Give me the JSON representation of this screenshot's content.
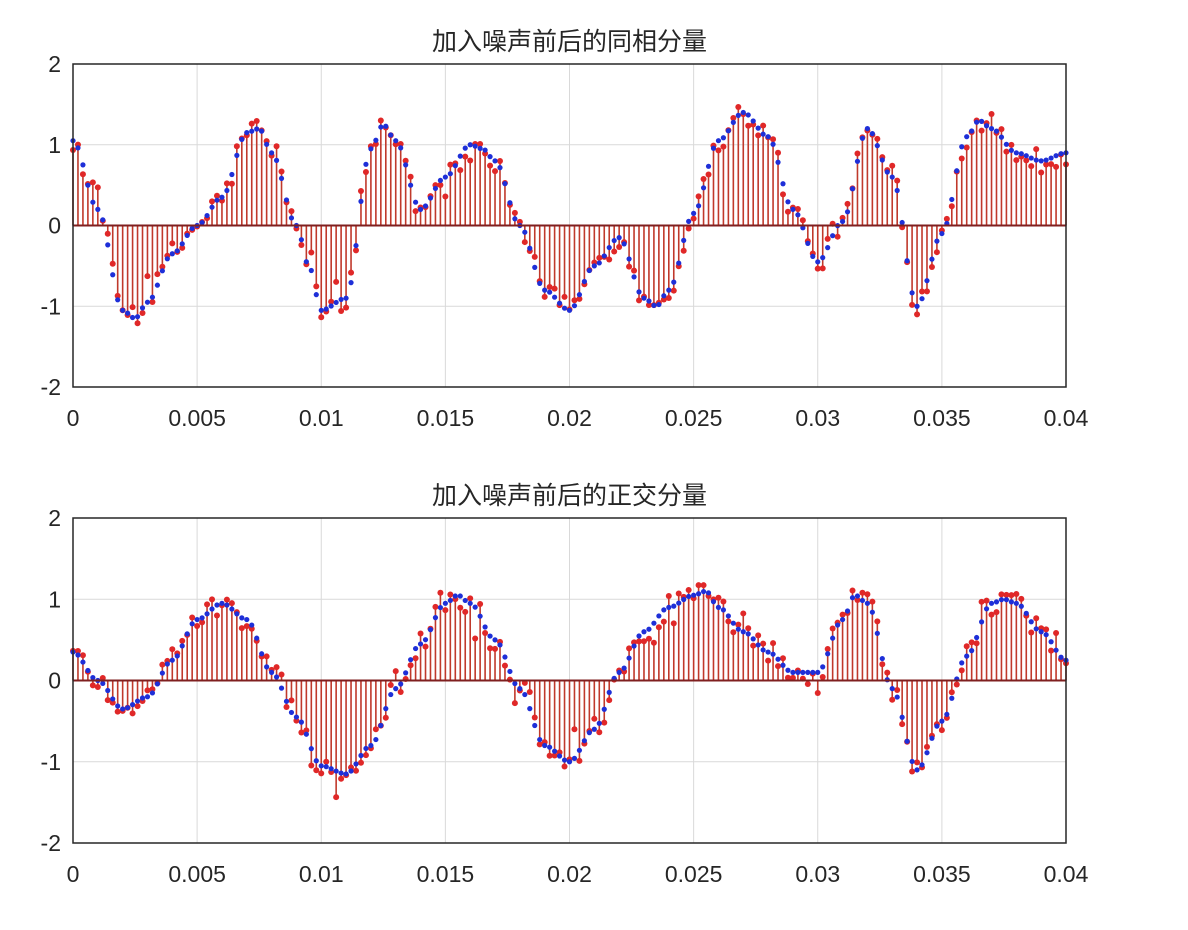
{
  "chart_data": [
    {
      "type": "stem",
      "title": "加入噪声前后的同相分量",
      "xlabel": "",
      "ylabel": "",
      "xlim": [
        0,
        0.04
      ],
      "ylim": [
        -2,
        2
      ],
      "x_ticks": [
        "0",
        "0.005",
        "0.01",
        "0.015",
        "0.02",
        "0.025",
        "0.03",
        "0.035",
        "0.04"
      ],
      "y_ticks": [
        "2",
        "1",
        "0",
        "-1",
        "-2"
      ],
      "grid": true,
      "sample_interval": 0.0002,
      "series": [
        {
          "color": "#1e2fd8",
          "marker": "filled-dot",
          "x": [
            0,
            0.001,
            0.002,
            0.0025,
            0.003,
            0.004,
            0.005,
            0.006,
            0.007,
            0.0075,
            0.008,
            0.009,
            0.0095,
            0.01,
            0.011,
            0.012,
            0.0125,
            0.013,
            0.014,
            0.015,
            0.016,
            0.0165,
            0.017,
            0.018,
            0.019,
            0.02,
            0.021,
            0.022,
            0.023,
            0.0235,
            0.024,
            0.025,
            0.026,
            0.027,
            0.028,
            0.029,
            0.03,
            0.031,
            0.032,
            0.033,
            0.034,
            0.035,
            0.036,
            0.0365,
            0.037,
            0.038,
            0.039,
            0.04
          ],
          "y": [
            1.05,
            0.2,
            -1.05,
            -1.15,
            -0.95,
            -0.35,
            0.0,
            0.35,
            1.15,
            1.2,
            0.9,
            0.0,
            -0.5,
            -1.05,
            -0.9,
            0.95,
            1.25,
            1.05,
            0.2,
            0.6,
            1.0,
            0.95,
            0.8,
            0.0,
            -0.8,
            -1.05,
            -0.5,
            -0.15,
            -0.9,
            -1.0,
            -0.8,
            0.15,
            1.05,
            1.4,
            1.1,
            0.2,
            -0.45,
            0.05,
            1.2,
            0.6,
            -1.0,
            -0.1,
            1.1,
            1.3,
            1.2,
            0.9,
            0.8,
            0.9
          ]
        },
        {
          "color": "#e02828",
          "marker": "stem-dot",
          "noise_amplitude": 0.3
        }
      ]
    },
    {
      "type": "stem",
      "title": "加入噪声前后的正交分量",
      "xlabel": "",
      "ylabel": "",
      "xlim": [
        0,
        0.04
      ],
      "ylim": [
        -2,
        2
      ],
      "x_ticks": [
        "0",
        "0.005",
        "0.01",
        "0.015",
        "0.02",
        "0.025",
        "0.03",
        "0.035",
        "0.04"
      ],
      "y_ticks": [
        "2",
        "1",
        "0",
        "-1",
        "-2"
      ],
      "grid": true,
      "sample_interval": 0.0002,
      "series": [
        {
          "color": "#1e2fd8",
          "marker": "filled-dot",
          "x": [
            0,
            0.001,
            0.002,
            0.003,
            0.004,
            0.005,
            0.006,
            0.007,
            0.008,
            0.009,
            0.01,
            0.011,
            0.012,
            0.013,
            0.014,
            0.015,
            0.0155,
            0.016,
            0.017,
            0.018,
            0.019,
            0.02,
            0.021,
            0.022,
            0.023,
            0.024,
            0.025,
            0.0255,
            0.026,
            0.027,
            0.028,
            0.029,
            0.03,
            0.031,
            0.0315,
            0.032,
            0.033,
            0.034,
            0.035,
            0.036,
            0.037,
            0.0375,
            0.038,
            0.039,
            0.04
          ],
          "y": [
            0.35,
            0.0,
            -0.35,
            -0.2,
            0.25,
            0.75,
            0.95,
            0.75,
            0.1,
            -0.45,
            -1.05,
            -1.15,
            -0.8,
            -0.1,
            0.45,
            0.95,
            1.05,
            0.95,
            0.5,
            -0.1,
            -0.8,
            -1.0,
            -0.6,
            0.1,
            0.6,
            0.9,
            1.05,
            1.1,
            0.9,
            0.6,
            0.35,
            0.1,
            0.1,
            0.75,
            1.05,
            0.95,
            -0.1,
            -1.1,
            -0.5,
            0.3,
            0.95,
            1.0,
            0.95,
            0.6,
            0.25
          ]
        },
        {
          "color": "#e02828",
          "marker": "stem-dot",
          "noise_amplitude": 0.3
        }
      ]
    }
  ]
}
